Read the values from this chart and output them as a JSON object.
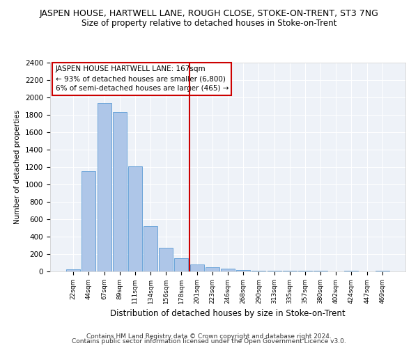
{
  "title": "JASPEN HOUSE, HARTWELL LANE, ROUGH CLOSE, STOKE-ON-TRENT, ST3 7NG",
  "subtitle": "Size of property relative to detached houses in Stoke-on-Trent",
  "xlabel": "Distribution of detached houses by size in Stoke-on-Trent",
  "ylabel": "Number of detached properties",
  "categories": [
    "22sqm",
    "44sqm",
    "67sqm",
    "89sqm",
    "111sqm",
    "134sqm",
    "156sqm",
    "178sqm",
    "201sqm",
    "223sqm",
    "246sqm",
    "268sqm",
    "290sqm",
    "313sqm",
    "335sqm",
    "357sqm",
    "380sqm",
    "402sqm",
    "424sqm",
    "447sqm",
    "469sqm"
  ],
  "values": [
    25,
    1150,
    1940,
    1830,
    1210,
    520,
    270,
    150,
    80,
    50,
    35,
    20,
    12,
    8,
    5,
    10,
    5,
    3,
    8,
    3,
    10
  ],
  "bar_color": "#aec6e8",
  "bar_edge_color": "#5b9bd5",
  "vline_x": 7.5,
  "vline_color": "#cc0000",
  "annotation_lines": [
    "JASPEN HOUSE HARTWELL LANE: 167sqm",
    "← 93% of detached houses are smaller (6,800)",
    "6% of semi-detached houses are larger (465) →"
  ],
  "annotation_box_color": "#cc0000",
  "ylim": [
    0,
    2400
  ],
  "yticks": [
    0,
    200,
    400,
    600,
    800,
    1000,
    1200,
    1400,
    1600,
    1800,
    2000,
    2200,
    2400
  ],
  "bg_color": "#eef2f8",
  "footer1": "Contains HM Land Registry data © Crown copyright and database right 2024.",
  "footer2": "Contains public sector information licensed under the Open Government Licence v3.0."
}
